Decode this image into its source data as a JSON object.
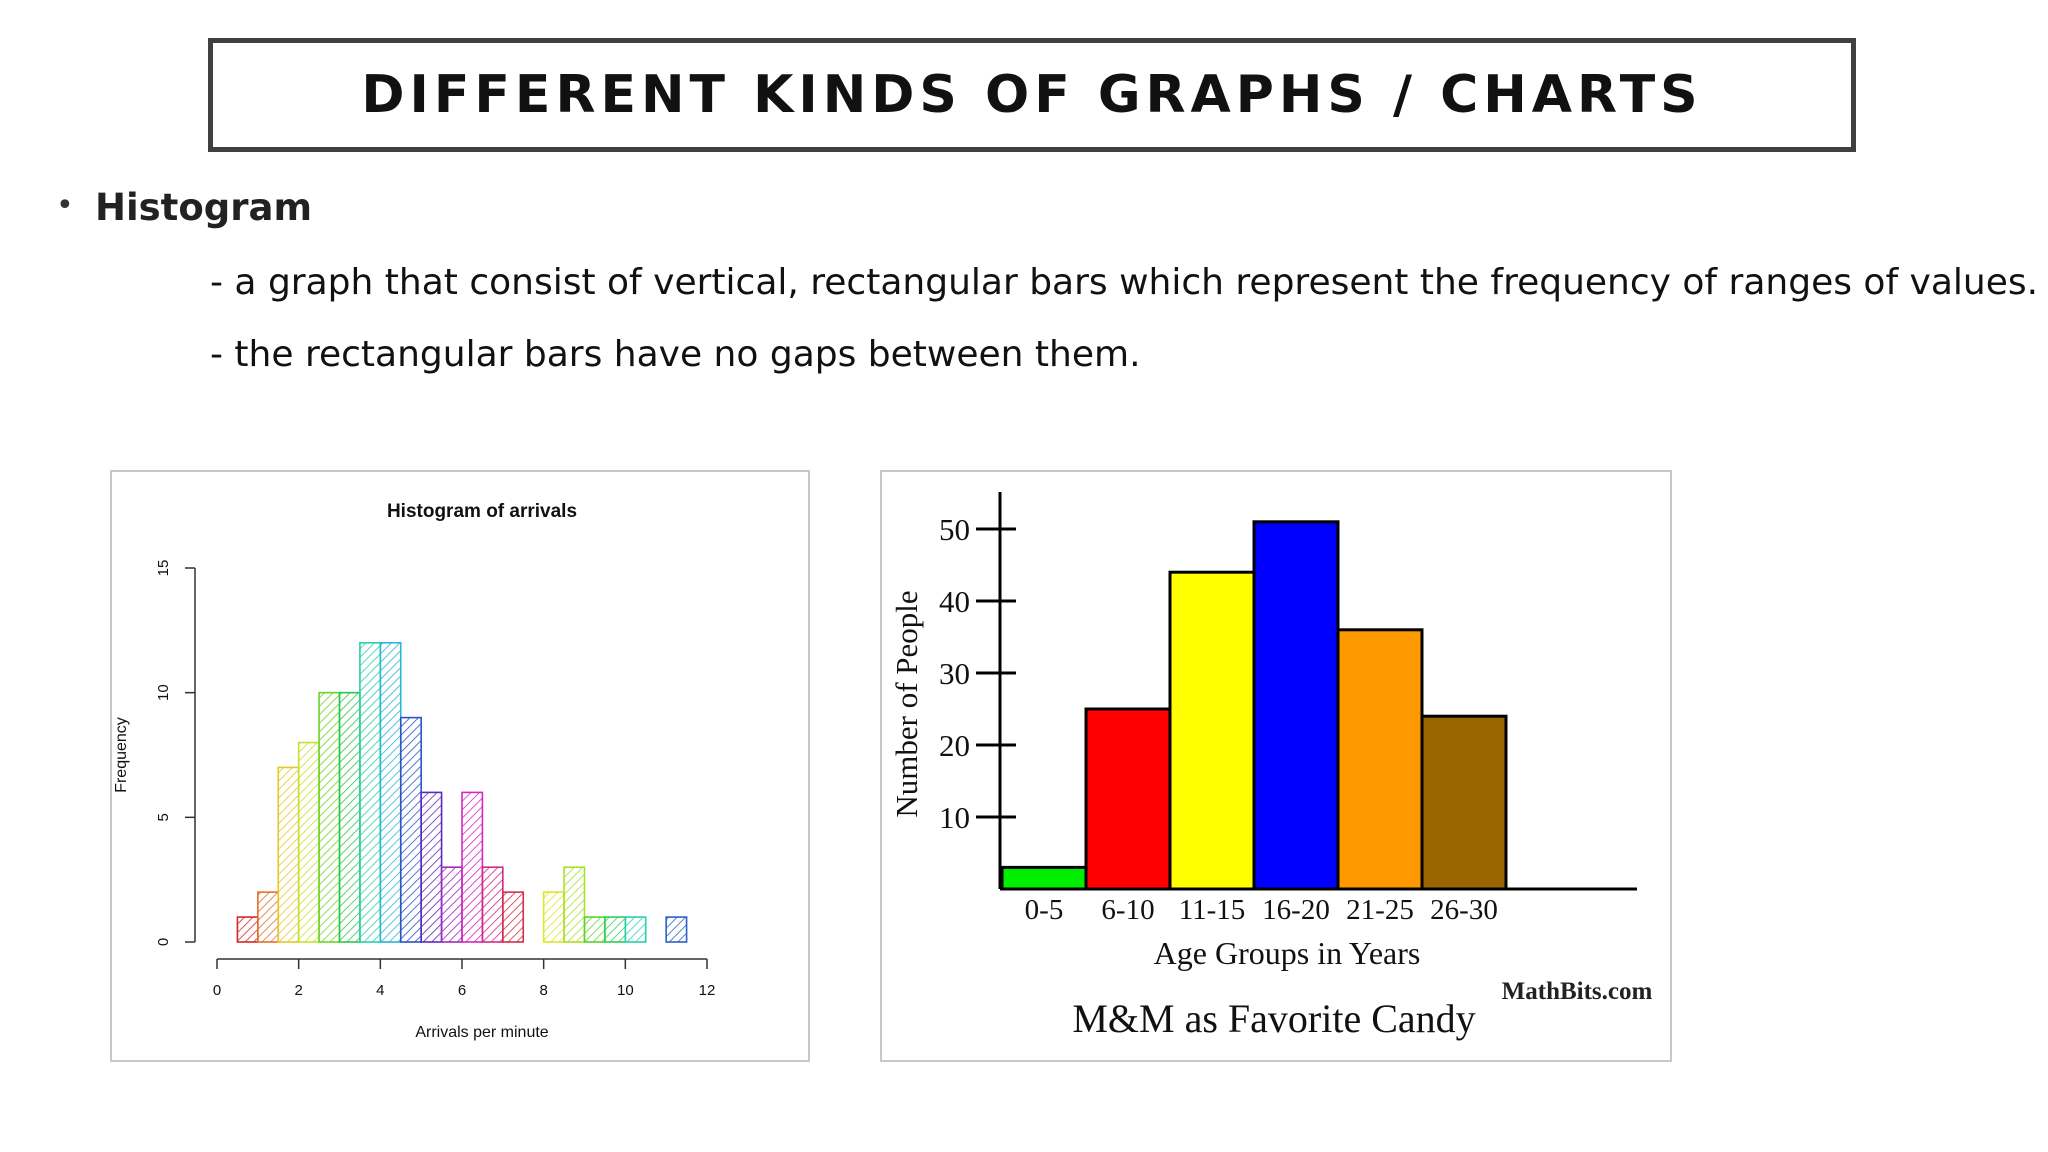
{
  "slide": {
    "title": "DIFFERENT KINDS OF GRAPHS / CHARTS",
    "bullet": {
      "marker": "•",
      "term": "Histogram",
      "lines": [
        "- a graph that consist of vertical, rectangular bars which represent the frequency of ranges of values.",
        "- the rectangular bars have no gaps between them."
      ]
    }
  },
  "chart_data": [
    {
      "type": "bar",
      "subtype": "histogram",
      "title": "Histogram of arrivals",
      "xlabel": "Arrivals per minute",
      "ylabel": "Frequency",
      "xlim": [
        0,
        12
      ],
      "ylim": [
        0,
        15
      ],
      "x_ticks": [
        "0",
        "2",
        "4",
        "6",
        "8",
        "10",
        "12"
      ],
      "y_ticks": [
        "0",
        "5",
        "10",
        "15"
      ],
      "bin_width": 0.5,
      "bins_start": [
        0.5,
        1.0,
        1.5,
        2.0,
        2.5,
        3.0,
        3.5,
        4.0,
        4.5,
        5.0,
        5.5,
        6.0,
        6.5,
        7.0,
        7.5,
        8.0,
        8.5,
        9.0,
        9.5,
        10.0,
        10.5,
        11.0
      ],
      "values": [
        1,
        2,
        7,
        8,
        10,
        10,
        12,
        12,
        9,
        6,
        3,
        6,
        3,
        2,
        0,
        2,
        3,
        1,
        1,
        1,
        0,
        1
      ],
      "colors": [
        "#d22a2a",
        "#e0702a",
        "#e6c82a",
        "#c6e22a",
        "#6ed42a",
        "#2ac84a",
        "#2ad0a6",
        "#2ab6d6",
        "#2a54c8",
        "#5a2ac0",
        "#a02ac0",
        "#d22ac0",
        "#d22a8c",
        "#d2304a",
        "#e08c2a",
        "#dce62a",
        "#a8e02a",
        "#5ad42a",
        "#2ad05a",
        "#2ad0b0",
        "#2ac0d6",
        "#2a62c8"
      ],
      "grid": false,
      "fill": "hatched"
    },
    {
      "type": "bar",
      "subtype": "histogram",
      "title": "M&M as Favorite Candy",
      "xlabel": "Age Groups in Years",
      "ylabel": "Number of People",
      "categories": [
        "0-5",
        "6-10",
        "11-15",
        "16-20",
        "21-25",
        "26-30"
      ],
      "values": [
        3,
        25,
        44,
        51,
        36,
        24
      ],
      "colors": [
        "#00ee00",
        "#ff0000",
        "#ffff00",
        "#0000ff",
        "#ff9900",
        "#996600"
      ],
      "y_ticks": [
        "10",
        "20",
        "30",
        "40",
        "50"
      ],
      "ylim": [
        0,
        55
      ],
      "grid": false,
      "credit": "MathBits.com"
    }
  ]
}
